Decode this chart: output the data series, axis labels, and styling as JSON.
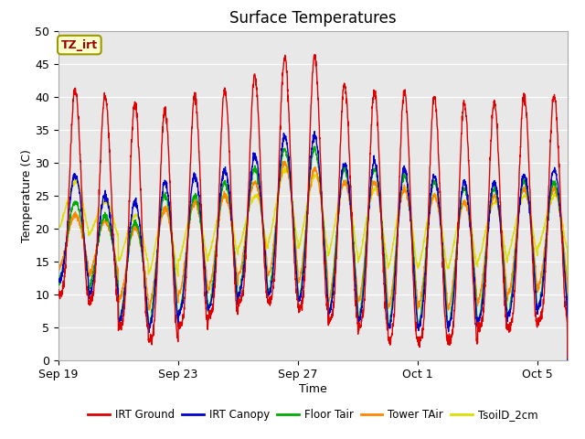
{
  "title": "Surface Temperatures",
  "xlabel": "Time",
  "ylabel": "Temperature (C)",
  "ylim": [
    0,
    50
  ],
  "xlim_days": [
    0,
    17
  ],
  "x_tick_labels": [
    "Sep 19",
    "Sep 23",
    "Sep 27",
    "Oct 1",
    "Oct 5"
  ],
  "x_tick_positions": [
    0,
    4,
    8,
    12,
    16
  ],
  "legend_labels": [
    "IRT Ground",
    "IRT Canopy",
    "Floor Tair",
    "Tower TAir",
    "TsoilD_2cm"
  ],
  "line_colors": [
    "#dd0000",
    "#0000cc",
    "#00aa00",
    "#ff8800",
    "#dddd00"
  ],
  "bg_color": "#e8e8e8",
  "annotation_text": "TZ_irt",
  "annotation_color": "#990000",
  "annotation_bg": "#ffffcc",
  "annotation_border": "#999900",
  "irt_ground_peaks": [
    41,
    40,
    39,
    38,
    40,
    41,
    43,
    46,
    46,
    42,
    41,
    41,
    40,
    39,
    39,
    40,
    40
  ],
  "irt_ground_mins": [
    10,
    9,
    5,
    3,
    5,
    7,
    9,
    9,
    8,
    6,
    5,
    3,
    3,
    3,
    5,
    5,
    6
  ],
  "irt_canopy_peaks": [
    28,
    25,
    24,
    27,
    28,
    29,
    31,
    34,
    34,
    30,
    30,
    29,
    28,
    27,
    27,
    28,
    29
  ],
  "irt_canopy_mins": [
    12,
    10,
    6,
    5,
    7,
    8,
    10,
    10,
    9,
    7,
    6,
    5,
    5,
    5,
    6,
    7,
    8
  ],
  "floor_tair_peaks": [
    24,
    22,
    21,
    25,
    25,
    27,
    29,
    32,
    32,
    29,
    29,
    28,
    27,
    26,
    26,
    27,
    27
  ],
  "floor_tair_mins": [
    12,
    11,
    6,
    5,
    7,
    8,
    10,
    10,
    9,
    7,
    6,
    5,
    5,
    5,
    6,
    7,
    8
  ],
  "tower_tair_peaks": [
    22,
    21,
    20,
    23,
    24,
    25,
    27,
    30,
    29,
    27,
    27,
    26,
    25,
    24,
    25,
    26,
    26
  ],
  "tower_tair_mins": [
    14,
    13,
    9,
    8,
    10,
    11,
    13,
    13,
    12,
    9,
    9,
    8,
    8,
    8,
    9,
    10,
    11
  ],
  "tsoil_peaks": [
    27,
    24,
    22,
    23,
    24,
    25,
    25,
    29,
    28,
    27,
    26,
    26,
    25,
    24,
    24,
    25,
    25
  ],
  "tsoil_mins": [
    20,
    19,
    15,
    13,
    15,
    16,
    17,
    18,
    17,
    16,
    15,
    14,
    14,
    14,
    15,
    16,
    17
  ]
}
